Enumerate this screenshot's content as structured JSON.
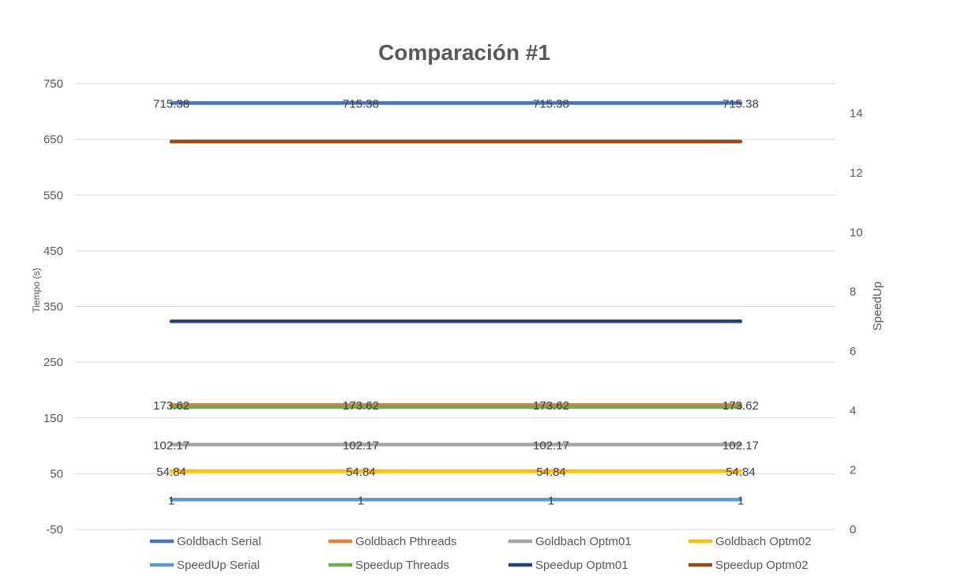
{
  "chart_data": {
    "type": "line",
    "title": "Comparación #1",
    "categories": [
      "",
      "",
      "",
      ""
    ],
    "ylabel": "Tiempo (s)",
    "y2label": "SpeedUp",
    "ylim": [
      -50,
      750
    ],
    "y2lim": [
      0,
      15
    ],
    "yticks": [
      "750",
      "650",
      "550",
      "450",
      "350",
      "250",
      "150",
      "50",
      "-50"
    ],
    "y2ticks": [
      "14",
      "12",
      "10",
      "8",
      "6",
      "4",
      "2",
      "0"
    ],
    "grid": true,
    "legend_position": "bottom",
    "series": [
      {
        "name": "Goldbach Serial",
        "axis": "primary",
        "color": "#4472C4",
        "values": [
          715.38,
          715.38,
          715.38,
          715.38
        ],
        "labels": [
          "715.38",
          "715.38",
          "715.38",
          "715.38"
        ]
      },
      {
        "name": "Goldbach Pthreads",
        "axis": "primary",
        "color": "#ED7D31",
        "values": [
          173.62,
          173.62,
          173.62,
          173.62
        ],
        "labels": [
          "173.62",
          "173.62",
          "173.62",
          "173.62"
        ]
      },
      {
        "name": "Goldbach Optm01",
        "axis": "primary",
        "color": "#A5A5A5",
        "values": [
          102.17,
          102.17,
          102.17,
          102.17
        ],
        "labels": [
          "102.17",
          "102.17",
          "102.17",
          "102.17"
        ]
      },
      {
        "name": "Goldbach Optm02",
        "axis": "primary",
        "color": "#FFC000",
        "values": [
          54.84,
          54.84,
          54.84,
          54.84
        ],
        "labels": [
          "54.84",
          "54.84",
          "54.84",
          "54.84"
        ]
      },
      {
        "name": "SpeedUp Serial",
        "axis": "secondary",
        "color": "#5B9BD5",
        "values": [
          1,
          1,
          1,
          1
        ],
        "labels": [
          "1",
          "1",
          "1",
          "1"
        ]
      },
      {
        "name": "Speedup Threads",
        "axis": "secondary",
        "color": "#70AD47",
        "values": [
          4.12,
          4.12,
          4.12,
          4.12
        ],
        "labels": []
      },
      {
        "name": "Speedup Optm01",
        "axis": "secondary",
        "color": "#264478",
        "values": [
          7.0,
          7.0,
          7.0,
          7.0
        ],
        "labels": []
      },
      {
        "name": "Speedup Optm02",
        "axis": "secondary",
        "color": "#9E480E",
        "values": [
          13.05,
          13.05,
          13.05,
          13.05
        ],
        "labels": []
      }
    ]
  }
}
